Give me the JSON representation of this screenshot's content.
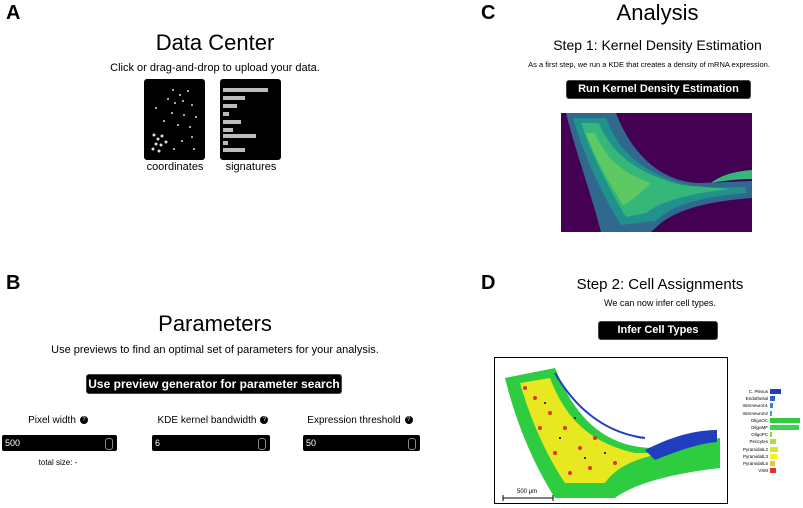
{
  "panels": {
    "a": {
      "letter": "A",
      "title": "Data Center",
      "subtitle": "Click or drag-and-drop to upload your data.",
      "upload_cards": [
        {
          "label": "coordinates",
          "icon": "scatter-points-icon"
        },
        {
          "label": "signatures",
          "icon": "bar-list-icon"
        }
      ]
    },
    "b": {
      "letter": "B",
      "title": "Parameters",
      "subtitle": "Use previews to find an optimal set of parameters for your analysis.",
      "button": "Use preview generator for parameter search",
      "fields": [
        {
          "label": "Pixel width",
          "value": "500"
        },
        {
          "label": "KDE kernel bandwidth",
          "value": "6"
        },
        {
          "label": "Expression threshold",
          "value": "50"
        }
      ],
      "total_size": "total size: -"
    },
    "c": {
      "letter": "C",
      "title": "Analysis",
      "step_title": "Step 1: Kernel Density Estimation",
      "step_desc": "As a first step, we run a KDE that creates a density of mRNA expression.",
      "button": "Run Kernel Density Estimation"
    },
    "d": {
      "letter": "D",
      "step_title": "Step 2: Cell Assignments",
      "step_desc": "We can now infer cell types.",
      "button": "Infer Cell Types",
      "scale_bar": "500 µm",
      "legend": [
        {
          "name": "C. Plexus",
          "color": "#1f3fbf",
          "value": 0.35
        },
        {
          "name": "Endothelial",
          "color": "#2a5fd0",
          "value": 0.15
        },
        {
          "name": "Interneuron1",
          "color": "#3f7fd8",
          "value": 0.1
        },
        {
          "name": "Interneuron2",
          "color": "#4aa0c8",
          "value": 0.05
        },
        {
          "name": "OligoOC",
          "color": "#2ecc40",
          "value": 1.0
        },
        {
          "name": "OligoMF",
          "color": "#3bd44a",
          "value": 0.95
        },
        {
          "name": "OligoPC",
          "color": "#7fdc3a",
          "value": 0.05
        },
        {
          "name": "Pericytes",
          "color": "#a6e03a",
          "value": 0.2
        },
        {
          "name": "PyramidalL2",
          "color": "#d0e830",
          "value": 0.25
        },
        {
          "name": "PyramidalL3",
          "color": "#f0f030",
          "value": 0.22
        },
        {
          "name": "PyramidalL5",
          "color": "#f5c020",
          "value": 0.18
        },
        {
          "name": "VSM",
          "color": "#e03030",
          "value": 0.2
        }
      ]
    }
  },
  "colors": {
    "kde_background": "#440154",
    "kde_mid": "#21918c",
    "kde_high": "#5ec962",
    "assignment_main": "#2ecc40",
    "assignment_blue": "#1f3fbf"
  }
}
